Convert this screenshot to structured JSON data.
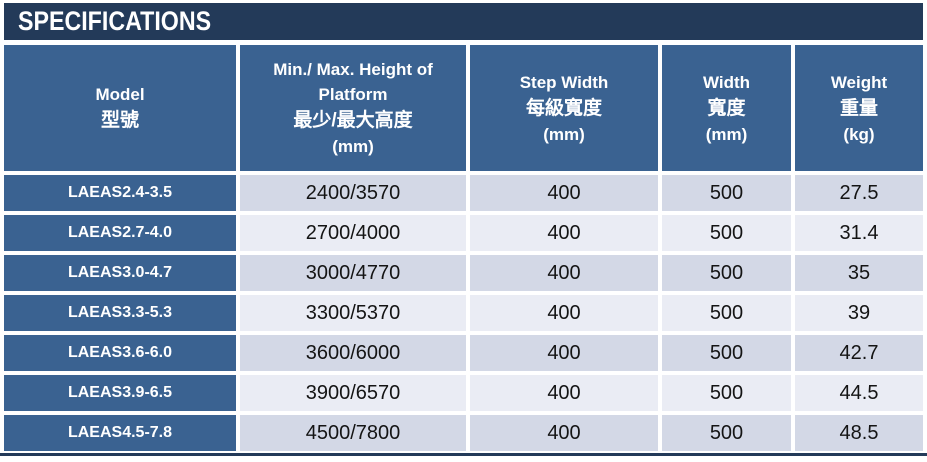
{
  "title": "SPECIFICATIONS",
  "colors": {
    "navy": "#233A59",
    "steel_blue": "#3A6291",
    "band_dark": "#D3D8E6",
    "band_light": "#EAECF4",
    "header_text": "#FFFFFF",
    "data_text": "#141414"
  },
  "table": {
    "columns": [
      {
        "id": "model",
        "lines": [
          "Model",
          "型號"
        ]
      },
      {
        "id": "height",
        "lines": [
          "Min./ Max. Height of",
          "Platform",
          "最少/最大高度",
          "(mm)"
        ]
      },
      {
        "id": "step_width",
        "lines": [
          "Step Width",
          "每級寬度",
          "(mm)"
        ]
      },
      {
        "id": "width",
        "lines": [
          "Width",
          "寬度",
          "(mm)"
        ]
      },
      {
        "id": "weight",
        "lines": [
          "Weight",
          "重量",
          "(kg)"
        ]
      }
    ],
    "rows": [
      {
        "model": "LAEAS2.4-3.5",
        "height": "2400/3570",
        "step_width": "400",
        "width": "500",
        "weight": "27.5"
      },
      {
        "model": "LAEAS2.7-4.0",
        "height": "2700/4000",
        "step_width": "400",
        "width": "500",
        "weight": "31.4"
      },
      {
        "model": "LAEAS3.0-4.7",
        "height": "3000/4770",
        "step_width": "400",
        "width": "500",
        "weight": "35"
      },
      {
        "model": "LAEAS3.3-5.3",
        "height": "3300/5370",
        "step_width": "400",
        "width": "500",
        "weight": "39"
      },
      {
        "model": "LAEAS3.6-6.0",
        "height": "3600/6000",
        "step_width": "400",
        "width": "500",
        "weight": "42.7"
      },
      {
        "model": "LAEAS3.9-6.5",
        "height": "3900/6570",
        "step_width": "400",
        "width": "500",
        "weight": "44.5"
      },
      {
        "model": "LAEAS4.5-7.8",
        "height": "4500/7800",
        "step_width": "400",
        "width": "500",
        "weight": "48.5"
      }
    ]
  }
}
